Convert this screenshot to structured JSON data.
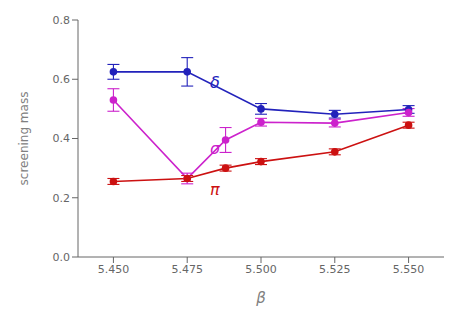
{
  "chart_data": {
    "type": "line",
    "x": [
      5.45,
      5.475,
      5.488,
      5.5,
      5.525,
      5.55
    ],
    "series": [
      {
        "color": "#2222bb",
        "values": [
          0.625,
          0.625,
          null,
          0.5,
          0.482,
          0.498
        ],
        "errors": [
          0.025,
          0.048,
          null,
          0.018,
          0.013,
          0.013
        ]
      },
      {
        "color": "#cc22cc",
        "values": [
          0.53,
          0.265,
          0.395,
          0.455,
          0.452,
          0.488
        ],
        "errors": [
          0.038,
          0.018,
          0.042,
          0.013,
          0.013,
          0.013
        ]
      },
      {
        "color": "#cc1111",
        "values": [
          0.255,
          0.265,
          0.3,
          0.322,
          0.355,
          0.445
        ],
        "errors": [
          0.01,
          0.01,
          0.01,
          0.01,
          0.01,
          0.01
        ]
      }
    ],
    "annotations": [
      {
        "text": "δ",
        "x": 5.481,
        "y": 0.59,
        "color": "#2222bb"
      },
      {
        "text": "σ",
        "x": 5.481,
        "y": 0.368,
        "color": "#cc22cc"
      },
      {
        "text": "π",
        "x": 5.481,
        "y": 0.228,
        "color": "#cc1111"
      }
    ],
    "marker": "circle",
    "line_style": "solid",
    "xlabel": "β",
    "ylabel": "screening mass",
    "xlim": [
      5.438,
      5.562
    ],
    "ylim": [
      0,
      0.8
    ],
    "xticks": [
      {
        "value": 5.45,
        "label": "5.450"
      },
      {
        "value": 5.475,
        "label": "5.475"
      },
      {
        "value": 5.5,
        "label": "5.500"
      },
      {
        "value": 5.525,
        "label": "5.525"
      },
      {
        "value": 5.55,
        "label": "5.550"
      }
    ],
    "yticks": [
      {
        "value": 0,
        "label": "0.0"
      },
      0.2,
      0.4,
      0.6,
      0.8
    ],
    "grid": false
  }
}
